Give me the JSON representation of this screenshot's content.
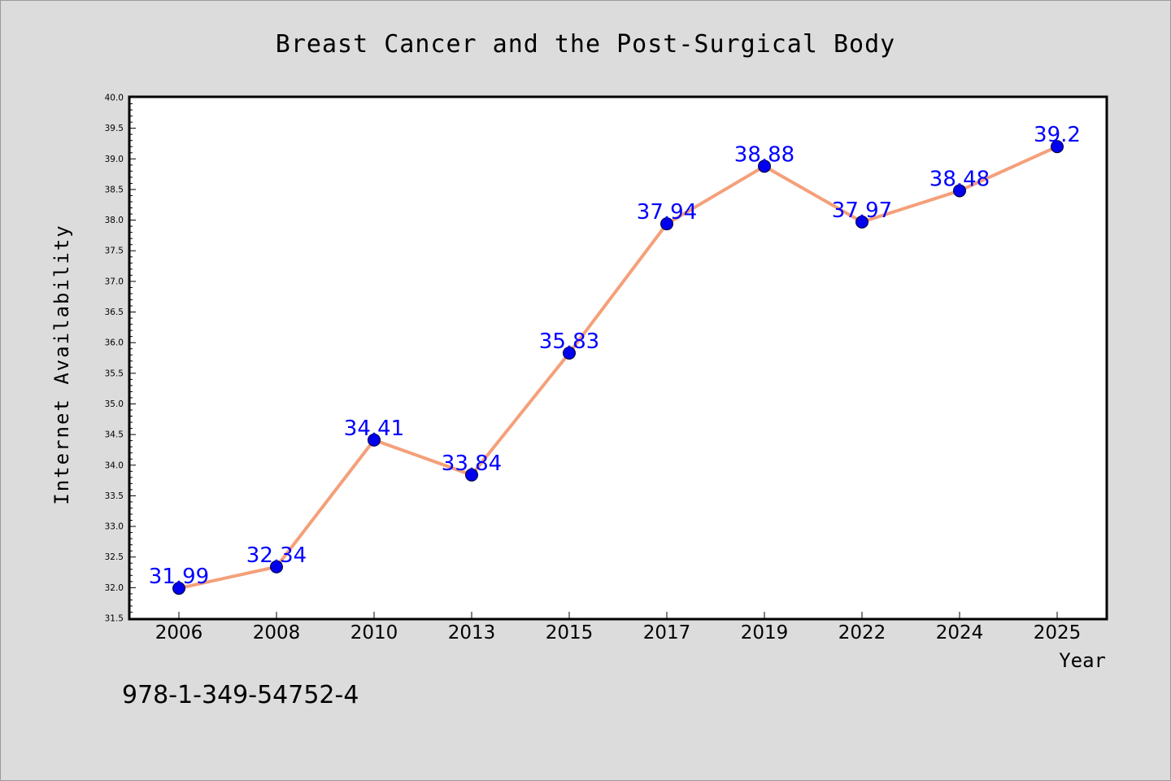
{
  "chart_data": {
    "type": "line",
    "title": "Breast Cancer and the Post-Surgical Body",
    "xlabel": "Year",
    "ylabel": "Internet Availability",
    "categories": [
      "2006",
      "2008",
      "2010",
      "2013",
      "2015",
      "2017",
      "2019",
      "2022",
      "2024",
      "2025"
    ],
    "series": [
      {
        "values": [
          31.99,
          32.34,
          34.41,
          33.84,
          35.83,
          37.94,
          38.88,
          37.97,
          38.48,
          39.2
        ],
        "labels": [
          "31.99",
          "32.34",
          "34.41",
          "33.84",
          "35.83",
          "37.94",
          "38.88",
          "37.97",
          "38.48",
          "39.2"
        ]
      }
    ],
    "ylim": [
      31.5,
      40.0
    ],
    "yticks": [
      "31.5",
      "32.0",
      "32.5",
      "33.0",
      "33.5",
      "34.0",
      "34.5",
      "35.0",
      "35.5",
      "36.0",
      "36.5",
      "37.0",
      "37.5",
      "38.0",
      "38.5",
      "39.0",
      "39.5",
      "40.0"
    ],
    "grid": false,
    "colors": {
      "line": "#f4a07a",
      "marker": "#0000ee",
      "label": "#0000ff",
      "background": "#dcdcdc",
      "plot_background": "#ffffff"
    }
  },
  "footer_text": "978-1-349-54752-4"
}
